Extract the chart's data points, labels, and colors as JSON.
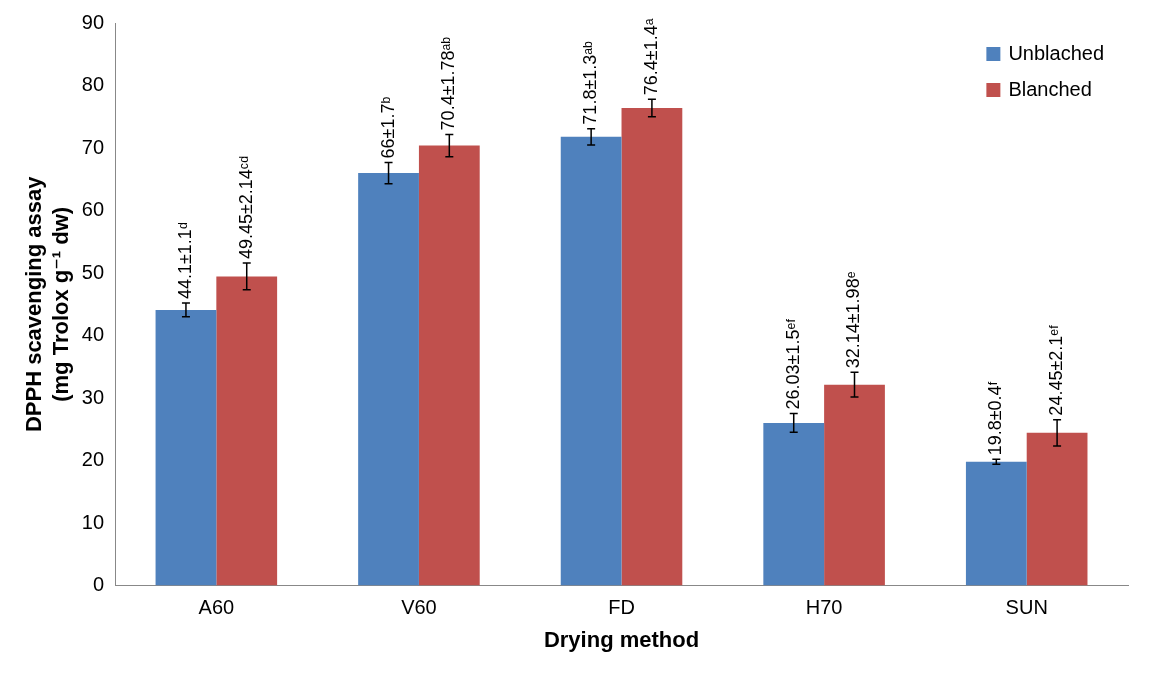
{
  "chart_data": {
    "type": "bar",
    "xlabel": "Drying method",
    "ylabel": "DPPH scavenging assay\n(mg Trolox g⁻¹ dw)",
    "categories": [
      "A60",
      "V60",
      "FD",
      "H70",
      "SUN"
    ],
    "series": [
      {
        "name": "Unblached",
        "color": "#4f81bd",
        "values": [
          44.1,
          66,
          71.8,
          26.03,
          19.8
        ],
        "errors": [
          1.1,
          1.7,
          1.3,
          1.5,
          0.4
        ],
        "value_labels": [
          "44.1±1.1ᵈ",
          "66±1.7ᵇ",
          "71.8±1.3ᵃᵇ",
          "26.03±1.5ᵉᶠ",
          "19.8±0.4ᶠ"
        ]
      },
      {
        "name": "Blanched",
        "color": "#c0504d",
        "values": [
          49.45,
          70.4,
          76.4,
          32.14,
          24.45
        ],
        "errors": [
          2.14,
          1.78,
          1.4,
          1.98,
          2.1
        ],
        "value_labels": [
          "49.45±2.14ᶜᵈ",
          "70.4±1.78ᵃᵇ",
          "76.4±1.4ᵃ",
          "32.14±1.98ᵉ",
          "24.45±2.1ᵉᶠ"
        ]
      }
    ],
    "ylim": [
      0,
      90
    ],
    "yticks": [
      0,
      10,
      20,
      30,
      40,
      50,
      60,
      70,
      80,
      90
    ],
    "grid": false,
    "legend": "top right"
  }
}
